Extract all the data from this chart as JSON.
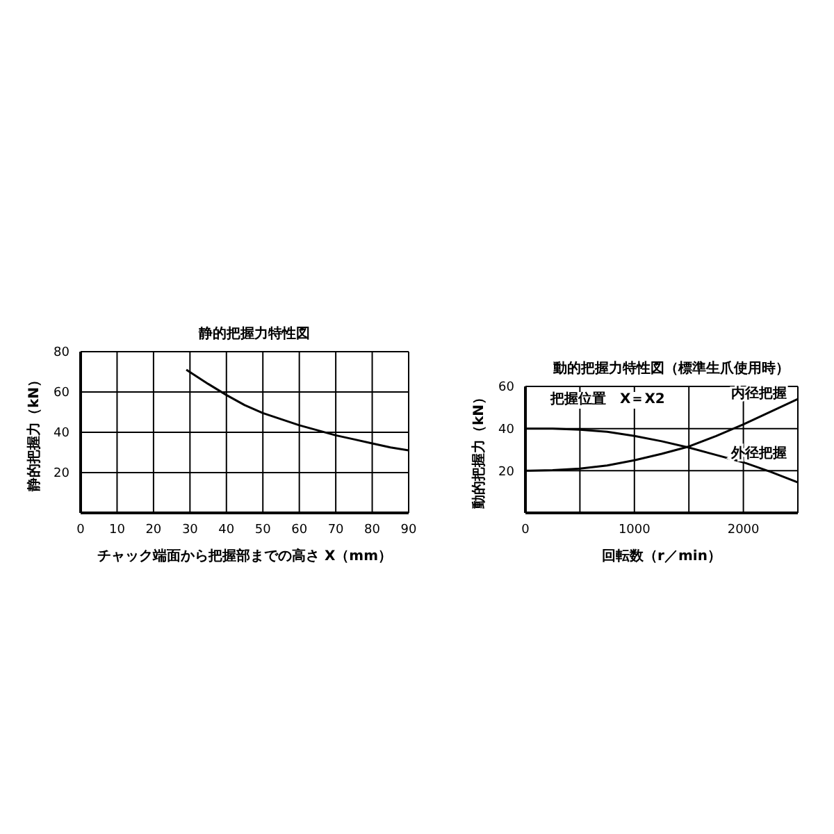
{
  "chart_data": [
    {
      "type": "line",
      "title": "静的把握力特性図",
      "xlabel": "チャック端面から把握部までの高さ X（mm）",
      "ylabel": "静的把握力（kN）",
      "x": [
        29,
        35,
        40,
        45,
        50,
        55,
        60,
        65,
        70,
        75,
        80,
        85,
        90
      ],
      "xlim": [
        0,
        90
      ],
      "xticks": [
        0,
        10,
        20,
        30,
        40,
        50,
        60,
        70,
        80,
        90
      ],
      "ylim": [
        0,
        80
      ],
      "yticks": [
        20,
        40,
        60,
        80
      ],
      "grid": true,
      "series": [
        {
          "color": "#000000",
          "values": [
            71,
            64,
            58.5,
            53.5,
            49.5,
            46.5,
            43.5,
            41,
            38.5,
            36.5,
            34.5,
            32.5,
            31
          ]
        }
      ]
    },
    {
      "type": "line",
      "title": "動的把握力特性図（標準生爪使用時）",
      "xlabel": "回転数（r／min）",
      "ylabel": "動的把握力（kN）",
      "annotations": [
        "把握位置　X＝X2"
      ],
      "x": [
        0,
        250,
        500,
        750,
        1000,
        1250,
        1500,
        1750,
        2000,
        2250,
        2500
      ],
      "xlim": [
        0,
        2500
      ],
      "xticks": [
        0,
        {
          "value": 500,
          "label": null
        },
        1000,
        {
          "value": 1500,
          "label": null
        },
        2000
      ],
      "ylim": [
        0,
        60
      ],
      "yticks": [
        20,
        40,
        60
      ],
      "grid": true,
      "series": [
        {
          "name": "内径把握",
          "color": "#000000",
          "values": [
            20,
            20.3,
            21,
            22.5,
            25,
            28,
            31.5,
            36.5,
            42,
            48,
            54
          ]
        },
        {
          "name": "外径把握",
          "color": "#000000",
          "values": [
            40,
            40,
            39.5,
            38.5,
            36.5,
            34,
            31,
            27.5,
            24,
            19.5,
            14.5
          ]
        }
      ]
    }
  ]
}
